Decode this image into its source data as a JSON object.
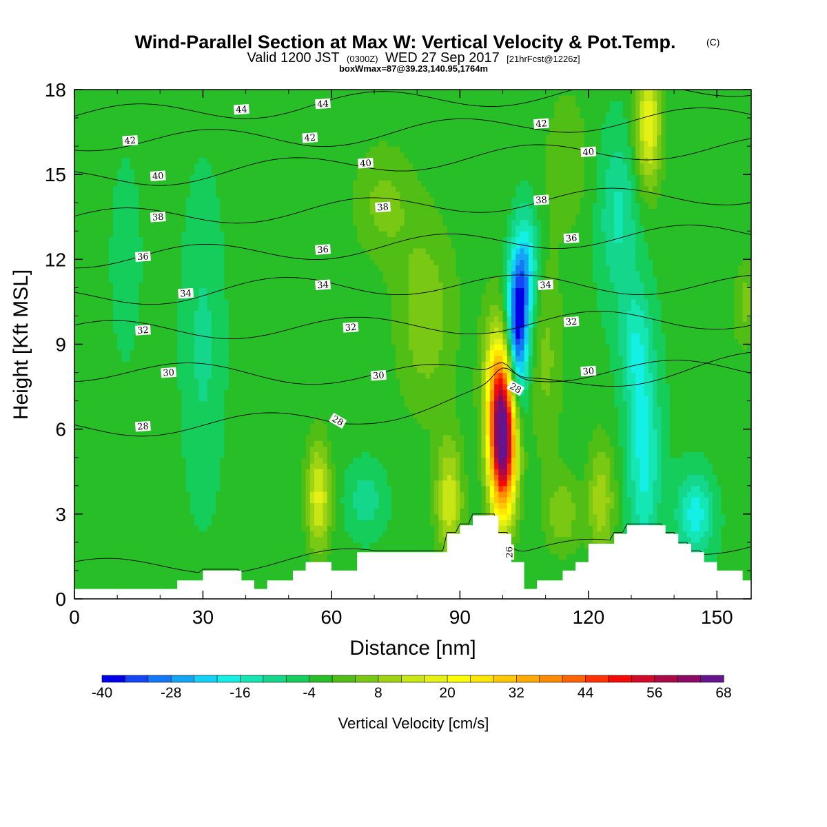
{
  "title": {
    "main": "Wind-Parallel Section at Max W: Vertical Velocity & Pot.Temp.",
    "main_suffix": "(C)",
    "valid_prefix": "Valid 1200 JST",
    "valid_utc": "(0300Z)",
    "valid_date": "WED 27 Sep 2017",
    "forecast": "[21hrFcst@1226z]",
    "box_info": "boxWmax=87@39.23,140.95,1764m"
  },
  "chart_data": {
    "type": "heatmap",
    "title": "Wind-Parallel Section at Max W: Vertical Velocity & Pot.Temp.",
    "xlabel": "Distance [nm]",
    "ylabel": "Height [Kft MSL]",
    "xlim": [
      0,
      158
    ],
    "ylim": [
      0,
      18
    ],
    "x_ticks": [
      0,
      30,
      60,
      90,
      120,
      150
    ],
    "y_ticks": [
      0,
      3,
      6,
      9,
      12,
      15,
      18
    ],
    "colorbar": {
      "label": "Vertical Velocity [cm/s]",
      "tick_values": [
        -40,
        -28,
        -16,
        -4,
        8,
        20,
        32,
        44,
        56,
        68
      ],
      "levels": [
        -40,
        -36,
        -32,
        -28,
        -24,
        -20,
        -16,
        -12,
        -8,
        -4,
        0,
        4,
        8,
        12,
        16,
        20,
        24,
        28,
        32,
        36,
        40,
        44,
        48,
        52,
        56,
        60,
        64,
        68
      ],
      "colors": [
        "#0000e6",
        "#1446f5",
        "#1478f5",
        "#14a5f5",
        "#14d2f5",
        "#14f0e6",
        "#14e6b4",
        "#14d78c",
        "#14cd5a",
        "#28be28",
        "#50be14",
        "#78c814",
        "#a0d214",
        "#c8e614",
        "#e6f014",
        "#ffff00",
        "#ffe600",
        "#ffc800",
        "#ffaa00",
        "#ff8c00",
        "#ff6400",
        "#ff3200",
        "#f50a0a",
        "#d20a28",
        "#aa0a46",
        "#8c0a64",
        "#64148c"
      ]
    },
    "field": {
      "background_w": -3,
      "features": [
        {
          "x": 100,
          "y": 5.6,
          "sx": 2.2,
          "sy": 1.9,
          "w": 70
        },
        {
          "x": 98.5,
          "y": 7.6,
          "sx": 2.4,
          "sy": 1.7,
          "w": 18
        },
        {
          "x": 103.5,
          "y": 9.7,
          "sx": 1.8,
          "sy": 1.9,
          "w": -38
        },
        {
          "x": 106,
          "y": 11.8,
          "sx": 1.8,
          "sy": 1.4,
          "w": -14
        },
        {
          "x": 133,
          "y": 5.0,
          "sx": 2.6,
          "sy": 2.4,
          "w": -15
        },
        {
          "x": 131,
          "y": 9.0,
          "sx": 2.5,
          "sy": 1.5,
          "w": -11
        },
        {
          "x": 127,
          "y": 13.5,
          "sx": 3.2,
          "sy": 2.0,
          "w": -10
        },
        {
          "x": 145,
          "y": 3.0,
          "sx": 3.0,
          "sy": 1.0,
          "w": -15
        },
        {
          "x": 134,
          "y": 16.8,
          "sx": 2.2,
          "sy": 1.6,
          "w": 22
        },
        {
          "x": 57,
          "y": 3.6,
          "sx": 2.0,
          "sy": 1.4,
          "w": 20
        },
        {
          "x": 87.5,
          "y": 3.5,
          "sx": 2.2,
          "sy": 1.5,
          "w": 18
        },
        {
          "x": 68,
          "y": 3.5,
          "sx": 3.0,
          "sy": 0.8,
          "w": -8
        },
        {
          "x": 114,
          "y": 3.0,
          "sx": 3.0,
          "sy": 1.0,
          "w": 10
        },
        {
          "x": 123,
          "y": 3.5,
          "sx": 2.2,
          "sy": 1.5,
          "w": 14
        },
        {
          "x": 82,
          "y": 10.0,
          "sx": 5.0,
          "sy": 2.5,
          "w": 10
        },
        {
          "x": 72,
          "y": 14.0,
          "sx": 5.0,
          "sy": 1.5,
          "w": 8
        },
        {
          "x": 115,
          "y": 15.5,
          "sx": 4.0,
          "sy": 2.0,
          "w": 6
        },
        {
          "x": 110,
          "y": 8.5,
          "sx": 3.0,
          "sy": 2.5,
          "w": 8
        },
        {
          "x": 97,
          "y": 15.0,
          "sx": 4.0,
          "sy": 3.0,
          "w": 3
        },
        {
          "x": 52,
          "y": 10.5,
          "sx": 3.0,
          "sy": 3.0,
          "w": 2
        },
        {
          "x": 30,
          "y": 9.0,
          "sx": 3.0,
          "sy": 3.5,
          "w": -6
        },
        {
          "x": 12,
          "y": 12.0,
          "sx": 2.0,
          "sy": 2.0,
          "w": -5
        },
        {
          "x": 152,
          "y": 9.0,
          "sx": 3.0,
          "sy": 3.0,
          "w": 3
        },
        {
          "x": 157,
          "y": 10.5,
          "sx": 1.5,
          "sy": 1.0,
          "w": 8
        }
      ],
      "theta_labels": [
        {
          "x": 39,
          "y": 17.3,
          "text": "44"
        },
        {
          "x": 58,
          "y": 17.5,
          "text": "44"
        },
        {
          "x": 13,
          "y": 16.2,
          "text": "42"
        },
        {
          "x": 55,
          "y": 16.3,
          "text": "42"
        },
        {
          "x": 109,
          "y": 16.8,
          "text": "42"
        },
        {
          "x": 19.5,
          "y": 14.95,
          "text": "40"
        },
        {
          "x": 68,
          "y": 15.4,
          "text": "40"
        },
        {
          "x": 120,
          "y": 15.8,
          "text": "40"
        },
        {
          "x": 19.5,
          "y": 13.5,
          "text": "38"
        },
        {
          "x": 72,
          "y": 13.85,
          "text": "38"
        },
        {
          "x": 109,
          "y": 14.1,
          "text": "38"
        },
        {
          "x": 16,
          "y": 12.1,
          "text": "36"
        },
        {
          "x": 58,
          "y": 12.35,
          "text": "36"
        },
        {
          "x": 116,
          "y": 12.75,
          "text": "36"
        },
        {
          "x": 26,
          "y": 10.8,
          "text": "34"
        },
        {
          "x": 58,
          "y": 11.1,
          "text": "34"
        },
        {
          "x": 110,
          "y": 11.1,
          "text": "34"
        },
        {
          "x": 16,
          "y": 9.5,
          "text": "32"
        },
        {
          "x": 64.5,
          "y": 9.6,
          "text": "32"
        },
        {
          "x": 116,
          "y": 9.8,
          "text": "32"
        },
        {
          "x": 22,
          "y": 8.0,
          "text": "30"
        },
        {
          "x": 71,
          "y": 7.9,
          "text": "30"
        },
        {
          "x": 120,
          "y": 8.05,
          "text": "30"
        },
        {
          "x": 16,
          "y": 6.1,
          "text": "28"
        },
        {
          "x": 61.5,
          "y": 6.3,
          "text": "28"
        },
        {
          "x": 103,
          "y": 7.45,
          "text": "28"
        },
        {
          "x": 101.5,
          "y": 1.65,
          "text": "26"
        }
      ],
      "terrain": [
        {
          "x": 0,
          "h": 0.35
        },
        {
          "x": 3,
          "h": 0.35
        },
        {
          "x": 6,
          "h": 0.35
        },
        {
          "x": 9,
          "h": 0.35
        },
        {
          "x": 12,
          "h": 0.35
        },
        {
          "x": 15,
          "h": 0.35
        },
        {
          "x": 18,
          "h": 0.35
        },
        {
          "x": 21,
          "h": 0.35
        },
        {
          "x": 24,
          "h": 0.65
        },
        {
          "x": 27,
          "h": 0.65
        },
        {
          "x": 30,
          "h": 1.0
        },
        {
          "x": 33,
          "h": 1.0
        },
        {
          "x": 36,
          "h": 1.0
        },
        {
          "x": 39,
          "h": 0.65
        },
        {
          "x": 42,
          "h": 0.35
        },
        {
          "x": 45,
          "h": 0.65
        },
        {
          "x": 48,
          "h": 0.65
        },
        {
          "x": 51,
          "h": 1.0
        },
        {
          "x": 54,
          "h": 1.3
        },
        {
          "x": 57,
          "h": 1.3
        },
        {
          "x": 60,
          "h": 1.0
        },
        {
          "x": 63,
          "h": 1.0
        },
        {
          "x": 66,
          "h": 1.65
        },
        {
          "x": 69,
          "h": 1.65
        },
        {
          "x": 72,
          "h": 1.65
        },
        {
          "x": 75,
          "h": 1.65
        },
        {
          "x": 78,
          "h": 1.65
        },
        {
          "x": 81,
          "h": 1.65
        },
        {
          "x": 84,
          "h": 1.65
        },
        {
          "x": 87,
          "h": 2.3
        },
        {
          "x": 90,
          "h": 2.6
        },
        {
          "x": 93,
          "h": 2.95
        },
        {
          "x": 96,
          "h": 2.95
        },
        {
          "x": 99,
          "h": 2.3
        },
        {
          "x": 102,
          "h": 1.3
        },
        {
          "x": 105,
          "h": 0.35
        },
        {
          "x": 108,
          "h": 0.65
        },
        {
          "x": 111,
          "h": 0.65
        },
        {
          "x": 114,
          "h": 1.0
        },
        {
          "x": 117,
          "h": 1.3
        },
        {
          "x": 120,
          "h": 1.95
        },
        {
          "x": 123,
          "h": 1.95
        },
        {
          "x": 126,
          "h": 2.3
        },
        {
          "x": 129,
          "h": 2.6
        },
        {
          "x": 132,
          "h": 2.6
        },
        {
          "x": 135,
          "h": 2.6
        },
        {
          "x": 138,
          "h": 2.3
        },
        {
          "x": 141,
          "h": 1.95
        },
        {
          "x": 144,
          "h": 1.65
        },
        {
          "x": 147,
          "h": 1.3
        },
        {
          "x": 150,
          "h": 1.0
        },
        {
          "x": 153,
          "h": 1.0
        },
        {
          "x": 156,
          "h": 0.65
        }
      ]
    }
  }
}
